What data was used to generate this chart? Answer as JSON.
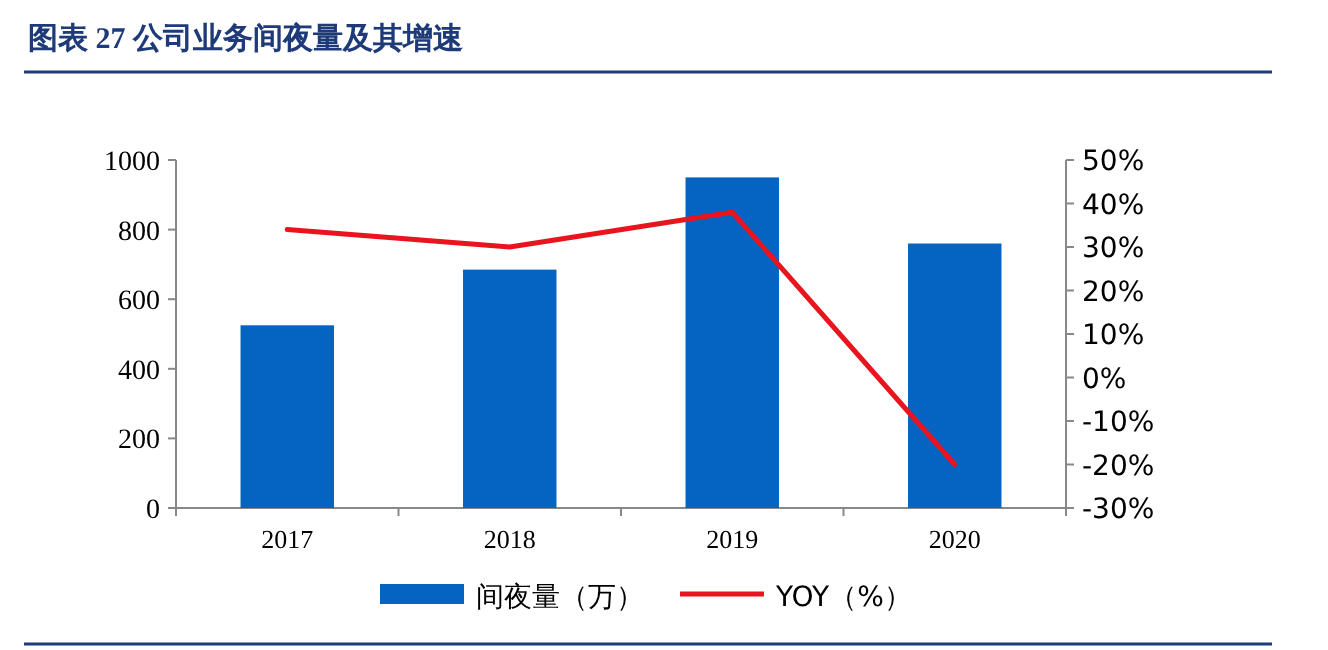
{
  "chart_data": {
    "type": "bar",
    "title": "图表 27 公司业务间夜量及其增速",
    "categories": [
      "2017",
      "2018",
      "2019",
      "2020"
    ],
    "series": [
      {
        "name": "间夜量（万）",
        "color": "#0563c1",
        "values": [
          525,
          685,
          950,
          760
        ]
      },
      {
        "name": "YOY（%）",
        "type": "line",
        "axis": "y2",
        "color": "#e8141e",
        "values": [
          34,
          30,
          38,
          -20
        ]
      }
    ],
    "ylim": [
      0,
      1000
    ],
    "yticks": [
      0,
      200,
      400,
      600,
      800,
      1000
    ],
    "y2lim": [
      -30,
      50
    ],
    "y2ticks": [
      {
        "value": -30,
        "label": "-30%"
      },
      {
        "value": -20,
        "label": "-20%"
      },
      {
        "value": -10,
        "label": "-10%"
      },
      {
        "value": 0,
        "label": "0%"
      },
      {
        "value": 10,
        "label": "10%"
      },
      {
        "value": 20,
        "label": "20%"
      },
      {
        "value": 30,
        "label": "30%"
      },
      {
        "value": 40,
        "label": "40%"
      },
      {
        "value": 50,
        "label": "50%"
      }
    ],
    "grid": false,
    "legend": "bottom"
  }
}
